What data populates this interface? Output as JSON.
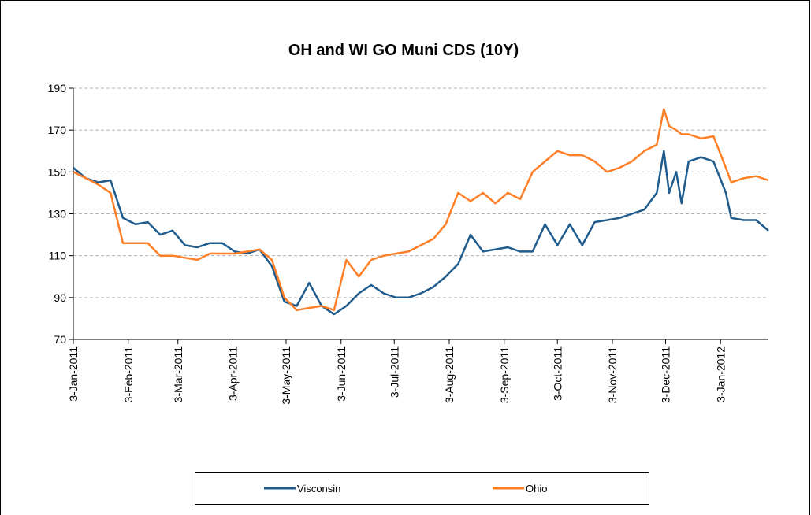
{
  "chart_data": {
    "type": "line",
    "title": "OH and WI GO Muni CDS (10Y)",
    "x": [
      "2011-01-03",
      "2011-01-10",
      "2011-01-17",
      "2011-01-24",
      "2011-01-31",
      "2011-02-07",
      "2011-02-14",
      "2011-02-21",
      "2011-02-28",
      "2011-03-07",
      "2011-03-14",
      "2011-03-21",
      "2011-03-28",
      "2011-04-04",
      "2011-04-11",
      "2011-04-18",
      "2011-04-25",
      "2011-05-02",
      "2011-05-09",
      "2011-05-16",
      "2011-05-23",
      "2011-05-30",
      "2011-06-06",
      "2011-06-13",
      "2011-06-20",
      "2011-06-27",
      "2011-07-04",
      "2011-07-11",
      "2011-07-18",
      "2011-07-25",
      "2011-08-01",
      "2011-08-08",
      "2011-08-15",
      "2011-08-22",
      "2011-08-29",
      "2011-09-05",
      "2011-09-12",
      "2011-09-19",
      "2011-09-26",
      "2011-10-03",
      "2011-10-10",
      "2011-10-17",
      "2011-10-24",
      "2011-10-31",
      "2011-11-07",
      "2011-11-14",
      "2011-11-21",
      "2011-11-28",
      "2011-12-02",
      "2011-12-05",
      "2011-12-09",
      "2011-12-12",
      "2011-12-16",
      "2011-12-23",
      "2011-12-30",
      "2012-01-06",
      "2012-01-09",
      "2012-01-16",
      "2012-01-23",
      "2012-01-30"
    ],
    "series": [
      {
        "name": "Visconsin",
        "color": "#1f5b8c",
        "values": [
          152,
          147,
          145,
          146,
          128,
          125,
          126,
          120,
          122,
          115,
          114,
          116,
          116,
          112,
          111,
          113,
          105,
          88,
          86,
          97,
          86,
          82,
          86,
          92,
          96,
          92,
          90,
          90,
          92,
          95,
          100,
          106,
          120,
          112,
          113,
          114,
          112,
          112,
          125,
          115,
          125,
          115,
          126,
          127,
          128,
          130,
          132,
          140,
          160,
          140,
          150,
          135,
          155,
          157,
          155,
          140,
          128,
          127,
          127,
          122
        ]
      },
      {
        "name": "Ohio",
        "color": "#ff7f27",
        "values": [
          150,
          147,
          144,
          140,
          116,
          116,
          116,
          110,
          110,
          109,
          108,
          111,
          111,
          111,
          112,
          113,
          108,
          90,
          84,
          85,
          86,
          84,
          108,
          100,
          108,
          110,
          111,
          112,
          115,
          118,
          125,
          140,
          136,
          140,
          135,
          140,
          137,
          150,
          155,
          160,
          158,
          158,
          155,
          150,
          152,
          155,
          160,
          163,
          180,
          172,
          170,
          168,
          168,
          166,
          167,
          152,
          145,
          147,
          148,
          146
        ]
      }
    ],
    "xlim": [
      "2011-01-03",
      "2012-01-30"
    ],
    "xticks": [
      {
        "value": "2011-01-03",
        "label": "3-Jan-2011"
      },
      {
        "value": "2011-02-03",
        "label": "3-Feb-2011"
      },
      {
        "value": "2011-03-03",
        "label": "3-Mar-2011"
      },
      {
        "value": "2011-04-03",
        "label": "3-Apr-2011"
      },
      {
        "value": "2011-05-03",
        "label": "3-May-2011"
      },
      {
        "value": "2011-06-03",
        "label": "3-Jun-2011"
      },
      {
        "value": "2011-07-03",
        "label": "3-Jul-2011"
      },
      {
        "value": "2011-08-03",
        "label": "3-Aug-2011"
      },
      {
        "value": "2011-09-03",
        "label": "3-Sep-2011"
      },
      {
        "value": "2011-10-03",
        "label": "3-Oct-2011"
      },
      {
        "value": "2011-11-03",
        "label": "3-Nov-2011"
      },
      {
        "value": "2011-12-03",
        "label": "3-Dec-2011"
      },
      {
        "value": "2012-01-03",
        "label": "3-Jan-2012"
      }
    ],
    "ylim": [
      70,
      190
    ],
    "yticks": [
      70,
      90,
      110,
      130,
      150,
      170,
      190
    ],
    "grid": true,
    "legend": "bottom"
  }
}
